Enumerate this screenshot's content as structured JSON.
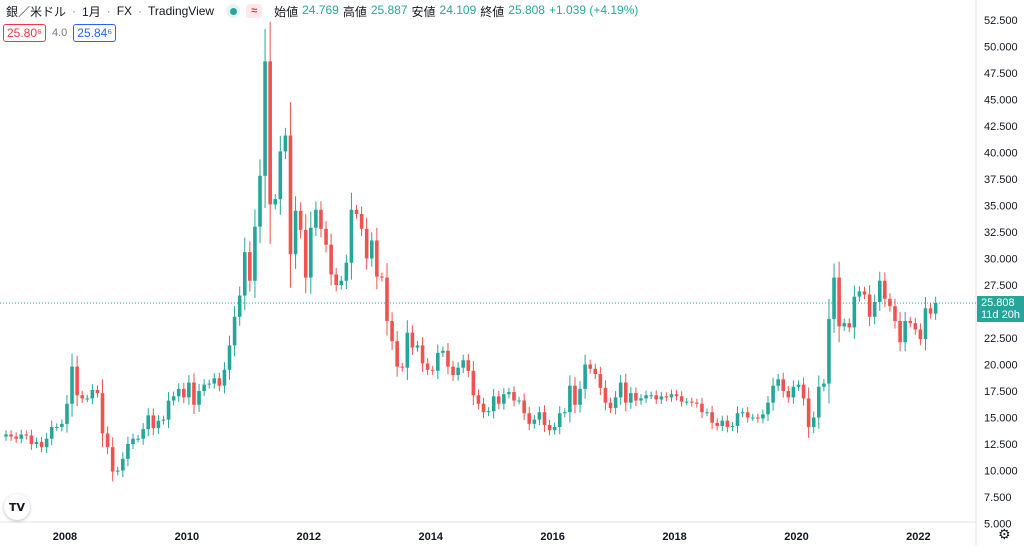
{
  "header": {
    "symbol": "銀／米ドル",
    "interval": "1月",
    "exchange": "FX",
    "source": "TradingView",
    "open_label": "始値",
    "open": "24.769",
    "high_label": "高値",
    "high": "25.887",
    "low_label": "安値",
    "low": "24.109",
    "close_label": "終値",
    "close": "25.808",
    "change": "+1.039 (+4.19%)"
  },
  "price_boxes": {
    "sell": "25.80⁶",
    "spread": "4.0",
    "buy": "25.84⁶"
  },
  "last_price": {
    "value": "25.808",
    "countdown": "11d 20h"
  },
  "icons": {
    "logo": "tradingview-logo-icon",
    "settings": "gear-icon"
  },
  "colors": {
    "up": "#26a69a",
    "down": "#ef5350",
    "last_line": "#26a69a"
  },
  "chart_data": {
    "type": "candlestick",
    "interval": "monthly",
    "y_ticks": [
      "52.500",
      "50.000",
      "47.500",
      "45.000",
      "42.500",
      "40.000",
      "37.500",
      "35.000",
      "32.500",
      "30.000",
      "27.500",
      "25.000",
      "22.500",
      "20.000",
      "17.500",
      "15.000",
      "12.500",
      "10.000",
      "7.500",
      "5.000"
    ],
    "x_ticks": [
      "2008",
      "2010",
      "2012",
      "2014",
      "2016",
      "2018",
      "2020",
      "2022"
    ],
    "ylim": [
      5,
      53
    ],
    "x_start": "2007-01",
    "closes": [
      13.4,
      13.2,
      13.0,
      13.4,
      13.3,
      12.5,
      12.7,
      12.2,
      13.0,
      14.1,
      14.1,
      14.4,
      16.3,
      19.8,
      17.1,
      16.8,
      16.8,
      17.6,
      17.3,
      13.5,
      12.2,
      9.9,
      10.0,
      11.1,
      12.5,
      13.0,
      13.0,
      13.9,
      15.2,
      14.0,
      14.7,
      14.8,
      16.6,
      17.0,
      17.7,
      16.9,
      18.3,
      16.2,
      17.5,
      18.1,
      18.2,
      18.7,
      18.0,
      19.5,
      21.8,
      24.5,
      26.5,
      30.6,
      27.9,
      33.0,
      37.8,
      48.6,
      35.1,
      35.6,
      40.1,
      41.6,
      30.4,
      34.5,
      32.7,
      28.2,
      32.9,
      34.6,
      32.8,
      31.3,
      28.5,
      27.5,
      27.9,
      29.6,
      34.6,
      34.2,
      32.8,
      30.0,
      31.7,
      28.3,
      28.2,
      24.1,
      22.2,
      19.8,
      19.7,
      23.0,
      21.6,
      21.8,
      20.1,
      19.5,
      19.4,
      21.1,
      21.3,
      19.8,
      19.0,
      19.7,
      20.4,
      19.4,
      17.1,
      16.3,
      15.5,
      15.6,
      17.0,
      16.3,
      17.2,
      17.4,
      16.6,
      16.6,
      15.4,
      14.4,
      14.8,
      15.5,
      14.3,
      13.8,
      14.1,
      15.4,
      15.5,
      18.0,
      16.2,
      17.7,
      20.0,
      19.6,
      19.1,
      17.8,
      16.4,
      15.9,
      16.9,
      18.3,
      16.4,
      17.3,
      16.6,
      16.8,
      17.1,
      17.1,
      16.7,
      17.0,
      16.9,
      17.2,
      17.0,
      16.5,
      16.5,
      16.4,
      16.3,
      15.5,
      15.5,
      14.5,
      14.2,
      14.7,
      14.1,
      14.2,
      15.4,
      15.5,
      15.0,
      15.0,
      14.9,
      15.3,
      16.4,
      18.0,
      18.6,
      17.5,
      16.9,
      17.9,
      18.1,
      16.8,
      14.1,
      15.0,
      17.9,
      18.2,
      24.3,
      28.2,
      23.6,
      23.9,
      23.5,
      26.4,
      26.9,
      26.6,
      24.5,
      25.9,
      27.9,
      26.2,
      25.5,
      24.1,
      22.1,
      24.1,
      23.9,
      23.3,
      22.4,
      25.3,
      24.8,
      25.8
    ]
  }
}
